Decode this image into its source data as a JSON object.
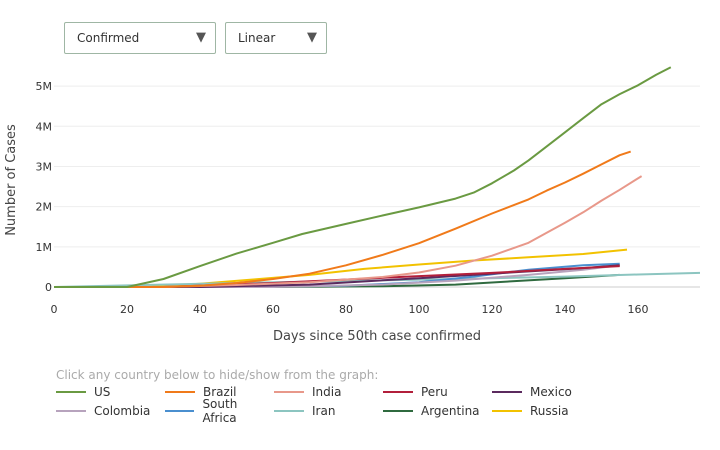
{
  "controls": {
    "metric": {
      "selected": "Confirmed",
      "caret": "▼"
    },
    "scale": {
      "selected": "Linear",
      "caret": "▼"
    }
  },
  "legend": {
    "hint": "Click any country below to hide/show from the graph:"
  },
  "chart_data": {
    "type": "line",
    "xlabel": "Days since 50th case confirmed",
    "ylabel": "Number of Cases",
    "xlim": [
      0,
      177
    ],
    "ylim": [
      0,
      5400000
    ],
    "xticks": [
      0,
      20,
      40,
      60,
      80,
      100,
      120,
      140,
      160
    ],
    "yticks": [
      0,
      1000000,
      2000000,
      3000000,
      4000000,
      5000000
    ],
    "ytick_labels": [
      "0",
      "1M",
      "2M",
      "3M",
      "4M",
      "5M"
    ],
    "grid": "horizontal",
    "series": [
      {
        "name": "US",
        "color": "#6a9a42",
        "x": [
          0,
          20,
          23,
          30,
          40,
          50,
          60,
          68,
          80,
          90,
          100,
          110,
          115,
          120,
          126,
          130,
          135,
          140,
          145,
          150,
          155,
          160,
          165,
          169
        ],
        "y": [
          0,
          0,
          60000,
          200000,
          520000,
          830000,
          1100000,
          1320000,
          1570000,
          1780000,
          1980000,
          2200000,
          2350000,
          2580000,
          2900000,
          3150000,
          3500000,
          3850000,
          4200000,
          4550000,
          4800000,
          5020000,
          5280000,
          5470000
        ]
      },
      {
        "name": "Brazil",
        "color": "#f07a1a",
        "x": [
          0,
          30,
          40,
          50,
          60,
          70,
          80,
          90,
          100,
          110,
          120,
          130,
          135,
          140,
          145,
          150,
          155,
          158
        ],
        "y": [
          0,
          0,
          30000,
          100000,
          200000,
          330000,
          540000,
          800000,
          1090000,
          1450000,
          1830000,
          2180000,
          2400000,
          2600000,
          2820000,
          3050000,
          3280000,
          3370000
        ]
      },
      {
        "name": "India",
        "color": "#e8988a",
        "x": [
          0,
          30,
          50,
          70,
          90,
          100,
          110,
          120,
          130,
          135,
          140,
          145,
          150,
          155,
          161
        ],
        "y": [
          0,
          0,
          50000,
          120000,
          250000,
          360000,
          530000,
          780000,
          1100000,
          1350000,
          1600000,
          1860000,
          2150000,
          2420000,
          2760000
        ]
      },
      {
        "name": "Peru",
        "color": "#b21f3b",
        "x": [
          0,
          30,
          60,
          90,
          120,
          140,
          155
        ],
        "y": [
          0,
          0,
          100000,
          230000,
          350000,
          450000,
          520000
        ]
      },
      {
        "name": "Mexico",
        "color": "#5b2a5e",
        "x": [
          0,
          40,
          70,
          100,
          125,
          145,
          155
        ],
        "y": [
          0,
          0,
          60000,
          220000,
          360000,
          470000,
          540000
        ]
      },
      {
        "name": "Colombia",
        "color": "#b7a3bd",
        "x": [
          0,
          60,
          90,
          110,
          130,
          145,
          155
        ],
        "y": [
          0,
          0,
          60000,
          160000,
          300000,
          430000,
          540000
        ]
      },
      {
        "name": "South Africa",
        "color": "#4a8fcf",
        "x": [
          0,
          50,
          80,
          100,
          115,
          130,
          145,
          155
        ],
        "y": [
          0,
          0,
          30000,
          120000,
          260000,
          430000,
          540000,
          580000
        ]
      },
      {
        "name": "Iran",
        "color": "#8cc5c0",
        "x": [
          0,
          20,
          50,
          80,
          110,
          140,
          160,
          177
        ],
        "y": [
          0,
          40000,
          100000,
          150000,
          200000,
          260000,
          310000,
          350000
        ]
      },
      {
        "name": "Argentina",
        "color": "#2f6a3f",
        "x": [
          0,
          60,
          90,
          110,
          125,
          140,
          155
        ],
        "y": [
          0,
          0,
          20000,
          60000,
          140000,
          220000,
          300000
        ]
      },
      {
        "name": "Russia",
        "color": "#f2c200",
        "x": [
          0,
          25,
          40,
          55,
          70,
          85,
          100,
          115,
          130,
          145,
          157
        ],
        "y": [
          0,
          0,
          80000,
          190000,
          300000,
          450000,
          560000,
          660000,
          740000,
          820000,
          930000
        ]
      }
    ]
  }
}
